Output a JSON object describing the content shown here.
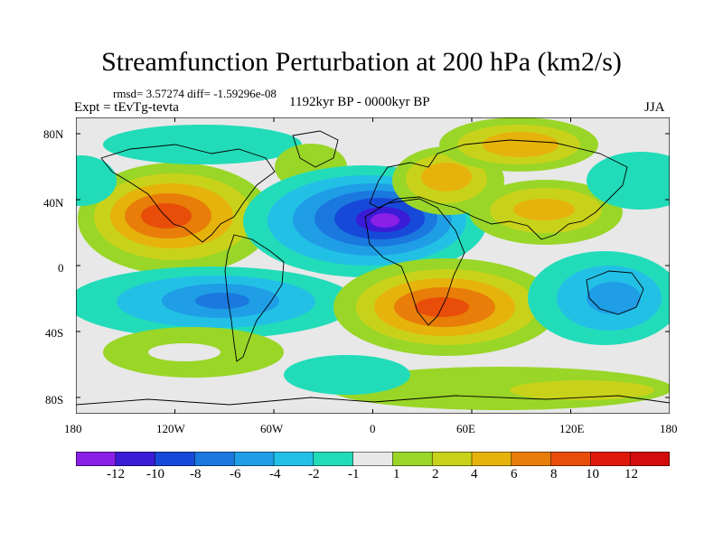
{
  "header": {
    "title": "Streamfunction Perturbation at 200 hPa (km2/s)",
    "stats": "rmsd= 3.57274 diff= -1.59296e-08",
    "experiment": "Expt = tEvTg-tevta",
    "period": "1192kyr BP - 0000kyr BP",
    "season": "JJA"
  },
  "axes": {
    "lat_labels": [
      "80N",
      "40N",
      "0",
      "40S",
      "80S"
    ],
    "lon_labels": [
      "180",
      "120W",
      "60W",
      "0",
      "60E",
      "120E",
      "180"
    ]
  },
  "colorbar": {
    "labels": [
      "-12",
      "-10",
      "-8",
      "-6",
      "-4",
      "-2",
      "-1",
      "1",
      "2",
      "4",
      "6",
      "8",
      "10",
      "12"
    ],
    "colors": [
      "#8a1fe6",
      "#3a1bd6",
      "#1749d8",
      "#1a78de",
      "#1f9ee6",
      "#23c0e6",
      "#22dcb9",
      "#e8e8e8",
      "#99d628",
      "#c9d21a",
      "#e6b30c",
      "#e87d09",
      "#e84d0a",
      "#e01a0a",
      "#d30c0c"
    ]
  },
  "chart_data": {
    "type": "heatmap",
    "title": "Streamfunction Perturbation at 200 hPa (km2/s)",
    "units": "km2/s",
    "x_range": [
      -180,
      180
    ],
    "y_range": [
      -90,
      90
    ],
    "contour_levels": [
      -12,
      -10,
      -8,
      -6,
      -4,
      -2,
      -1,
      1,
      2,
      4,
      6,
      8,
      10,
      12
    ],
    "features": [
      {
        "name": "positive-center-north-america",
        "lon": -120,
        "lat": 32,
        "peak": 10
      },
      {
        "name": "negative-center-north-africa",
        "lon": 5,
        "lat": 28,
        "peak": -12
      },
      {
        "name": "positive-center-europe",
        "lon": 45,
        "lat": 45,
        "peak": 6
      },
      {
        "name": "positive-center-siberia",
        "lon": 90,
        "lat": 70,
        "peak": 6
      },
      {
        "name": "positive-center-south-asia",
        "lon": 105,
        "lat": 32,
        "peak": 4
      },
      {
        "name": "positive-center-southern-africa",
        "lon": 30,
        "lat": -25,
        "peak": 10
      },
      {
        "name": "negative-center-south-pacific",
        "lon": -100,
        "lat": -20,
        "peak": -6
      },
      {
        "name": "negative-center-australia",
        "lon": 125,
        "lat": -15,
        "peak": -4
      },
      {
        "name": "negative-center-north-pacific",
        "lon": 160,
        "lat": 48,
        "peak": -2
      }
    ]
  }
}
